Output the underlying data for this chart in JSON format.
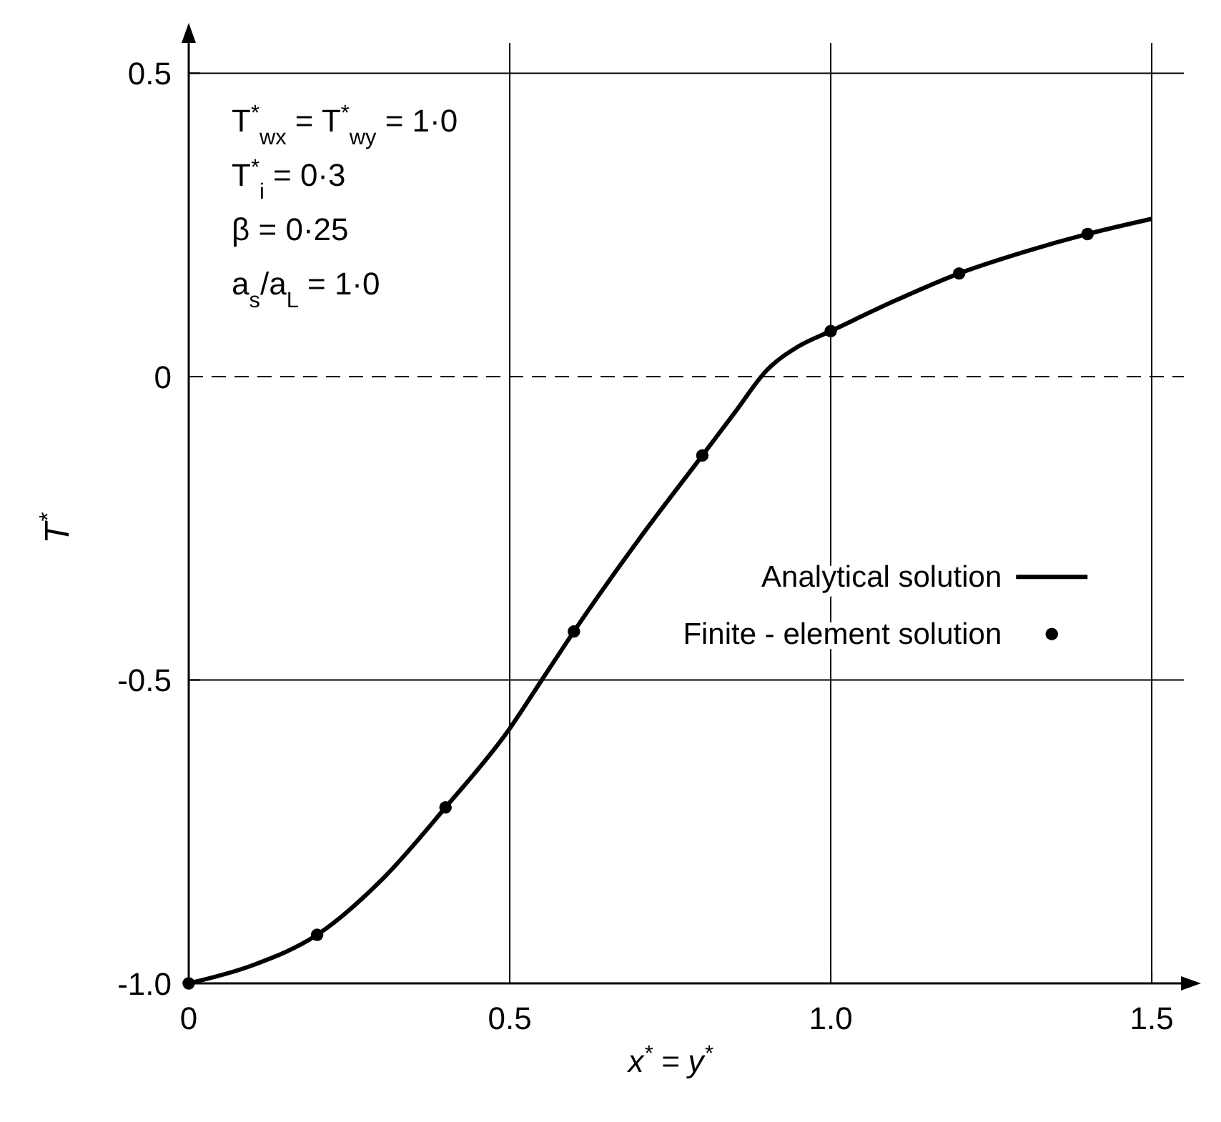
{
  "chart_data": {
    "type": "line",
    "xlabel": "x$^{*}$ = y$^{*}$",
    "ylabel": "T$^{*}$",
    "xlim": [
      0,
      1.55
    ],
    "ylim": [
      -1.0,
      0.55
    ],
    "xticks": [
      0,
      {
        "value": 0.5,
        "label": "0.5"
      },
      {
        "value": 1.0,
        "label": "1.0"
      },
      {
        "value": 1.5,
        "label": "1.5"
      }
    ],
    "yticks": [
      {
        "value": -1.0,
        "label": "-1.0"
      },
      {
        "value": -0.5,
        "label": "-0.5"
      },
      0,
      {
        "value": 0.5,
        "label": "0.5"
      }
    ],
    "grid": true,
    "legend": "right",
    "line_style": "solid",
    "ref_lines": [
      {
        "axis": "y",
        "value": 0,
        "line_style": "dashed",
        "color": "#000000"
      }
    ],
    "annotations": [
      "T$^{*}$$_{wx}$ = T$^{*}$$_{wy}$ = 1·0",
      "T$^{*}$$_{i}$ = 0·3",
      "β = 0·25",
      "a$_{s}$/a$_{L}$ = 1·0"
    ],
    "series": [
      {
        "name": "Analytical solution",
        "type": "line",
        "color": "#000000",
        "marker": "none",
        "x": [
          0,
          0.1,
          0.2,
          0.3,
          0.4,
          0.5,
          0.55,
          0.6,
          0.7,
          0.8,
          0.85,
          0.9,
          0.95,
          1.0,
          1.1,
          1.2,
          1.3,
          1.4,
          1.5
        ],
        "values": [
          -1.0,
          -0.97,
          -0.92,
          -0.83,
          -0.71,
          -0.58,
          -0.5,
          -0.42,
          -0.27,
          -0.13,
          -0.06,
          0.01,
          0.05,
          0.075,
          0.125,
          0.17,
          0.205,
          0.235,
          0.26
        ]
      },
      {
        "name": "Finite - element solution",
        "type": "scatter",
        "color": "#000000",
        "marker": "circle",
        "x": [
          0,
          0.2,
          0.4,
          0.6,
          0.8,
          1.0,
          1.2,
          1.4
        ],
        "values": [
          -1.0,
          -0.92,
          -0.71,
          -0.42,
          -0.13,
          0.075,
          0.17,
          0.235
        ]
      }
    ]
  }
}
